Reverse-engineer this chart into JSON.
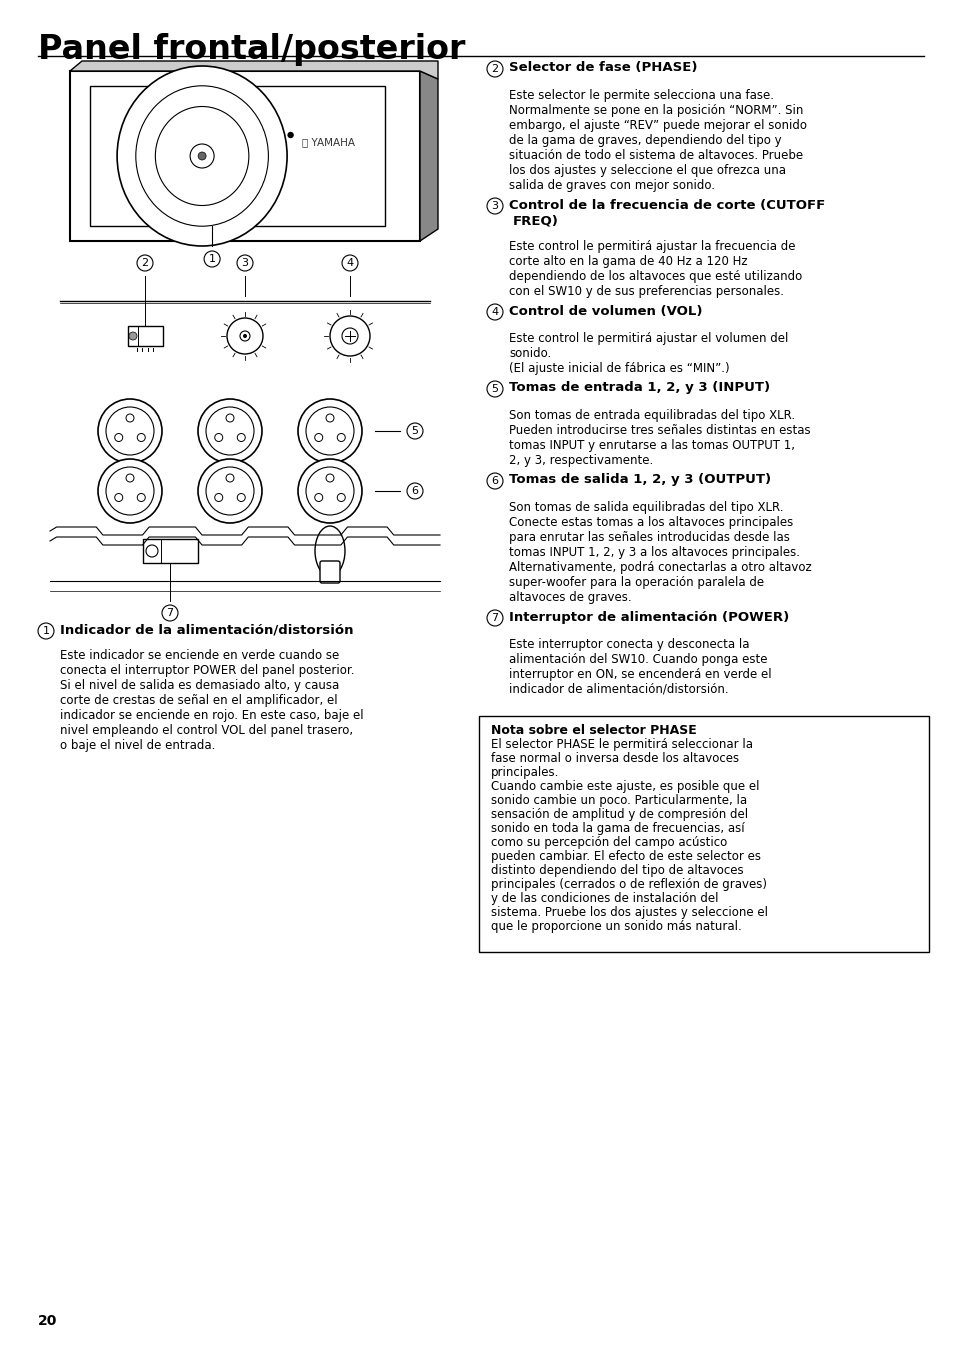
{
  "title": "Panel frontal/posterior",
  "bg_color": "#ffffff",
  "text_color": "#000000",
  "page_number": "20",
  "section2_heading": "Selector de fase (PHASE)",
  "section2_body": "Este selector le permite selecciona una fase.\nNormalmente se pone en la posición “NORM”. Sin\nembargo, el ajuste “REV” puede mejorar el sonido\nde la gama de graves, dependiendo del tipo y\nsituación de todo el sistema de altavoces. Pruebe\nlos dos ajustes y seleccione el que ofrezca una\nsalida de graves con mejor sonido.",
  "section3_heading_1": "Control de la frecuencia de corte (CUTOFF",
  "section3_heading_2": "FREQ)",
  "section3_body": "Este control le permitirá ajustar la frecuencia de\ncorte alto en la gama de 40 Hz a 120 Hz\ndependiendo de los altavoces que esté utilizando\ncon el SW10 y de sus preferencias personales.",
  "section4_heading": "Control de volumen (VOL)",
  "section4_body": "Este control le permitirá ajustar el volumen del\nsonido.\n(El ajuste inicial de fábrica es “MIN”.)",
  "section5_heading": "Tomas de entrada 1, 2, y 3 (INPUT)",
  "section5_body": "Son tomas de entrada equilibradas del tipo XLR.\nPueden introducirse tres señales distintas en estas\ntomas INPUT y enrutarse a las tomas OUTPUT 1,\n2, y 3, respectivamente.",
  "section6_heading": "Tomas de salida 1, 2, y 3 (OUTPUT)",
  "section6_body": "Son tomas de salida equilibradas del tipo XLR.\nConecte estas tomas a los altavoces principales\npara enrutar las señales introducidas desde las\ntomas INPUT 1, 2, y 3 a los altavoces principales.\nAlternativamente, podrá conectarlas a otro altavoz\nsuper-woofer para la operación paralela de\naltavoces de graves.",
  "section7_heading": "Interruptor de alimentación (POWER)",
  "section7_body": "Este interruptor conecta y desconecta la\nalimentación del SW10. Cuando ponga este\ninterruptor en ON, se encenderá en verde el\nindicador de alimentación/distorsión.",
  "section1_heading": "Indicador de la alimentación/distorsión",
  "section1_body": "Este indicador se enciende en verde cuando se\nconecta el interruptor POWER del panel posterior.\nSi el nivel de salida es demasiado alto, y causa\ncorte de crestas de señal en el amplificador, el\nindicador se enciende en rojo. En este caso, baje el\nnivel empleando el control VOL del panel trasero,\no baje el nivel de entrada.",
  "note_heading": "Nota sobre el selector PHASE",
  "note_body": "El selector PHASE le permitirá seleccionar la\nfase normal o inversa desde los altavoces\nprincipales.\nCuando cambie este ajuste, es posible que el\nsonido cambie un poco. Particularmente, la\nsensación de amplitud y de compresión del\nsonido en toda la gama de frecuencias, así\ncomo su percepción del campo acústico\npueden cambiar. El efecto de este selector es\ndistinto dependiendo del tipo de altavoces\nprincipales (cerrados o de reflexión de graves)\ny de las condiciones de instalación del\nsistema. Pruebe los dos ajustes y seleccione el\nque le proporcione un sonido más natural."
}
